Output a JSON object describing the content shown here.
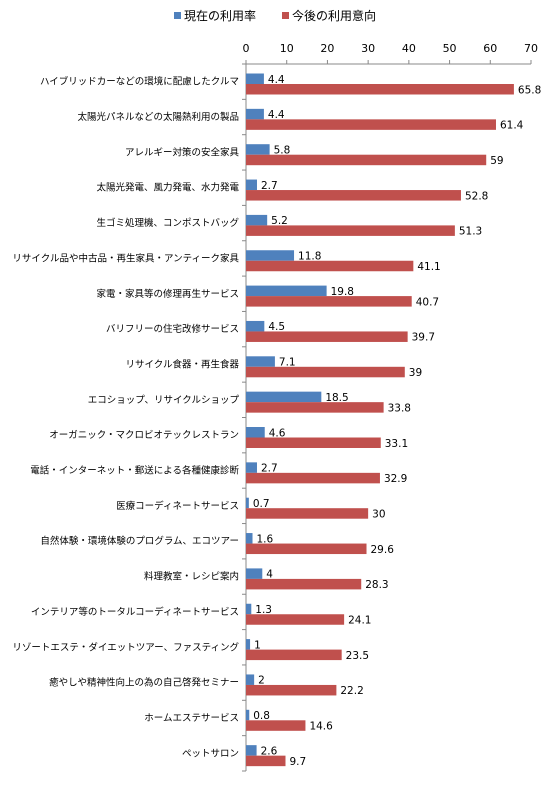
{
  "chart_data": {
    "type": "bar",
    "orientation": "horizontal",
    "categories": [
      "ハイブリッドカーなどの環境に配慮したクルマ",
      "太陽光パネルなどの太陽熱利用の製品",
      "アレルギー対策の安全家具",
      "太陽光発電、風力発電、水力発電",
      "生ゴミ処理機、コンポストバッグ",
      "リサイクル品や中古品・再生家具・アンティーク家具",
      "家電・家具等の修理再生サービス",
      "バリフリーの住宅改修サービス",
      "リサイクル食器・再生食器",
      "エコショップ、リサイクルショップ",
      "オーガニック・マクロビオテックレストラン",
      "電話・インターネット・郵送による各種健康診断",
      "医療コーディネートサービス",
      "自然体験・環境体験のプログラム、エコツアー",
      "料理教室・レシピ案内",
      "インテリア等のトータルコーディネートサービス",
      "リゾートエステ・ダイエットツアー、ファスティング",
      "癒やしや精神性向上の為の自己啓発セミナー",
      "ホームエステサービス",
      "ペットサロン"
    ],
    "series": [
      {
        "name": "現在の利用率",
        "color": "#4F81BD",
        "values": [
          4.4,
          4.4,
          5.8,
          2.7,
          5.2,
          11.8,
          19.8,
          4.5,
          7.1,
          18.5,
          4.6,
          2.7,
          0.7,
          1.6,
          4,
          1.3,
          1,
          2,
          0.8,
          2.6
        ]
      },
      {
        "name": "今後の利用意向",
        "color": "#C0504D",
        "values": [
          65.8,
          61.4,
          59,
          52.8,
          51.3,
          41.1,
          40.7,
          39.7,
          39,
          33.8,
          33.1,
          32.9,
          30,
          29.6,
          28.3,
          24.1,
          23.5,
          22.2,
          14.6,
          9.7
        ]
      }
    ],
    "xlim": [
      0,
      70
    ],
    "xticks": [
      0,
      10,
      20,
      30,
      40,
      50,
      60,
      70
    ],
    "axis_position": "top",
    "legend_position": "top",
    "grid": false
  }
}
